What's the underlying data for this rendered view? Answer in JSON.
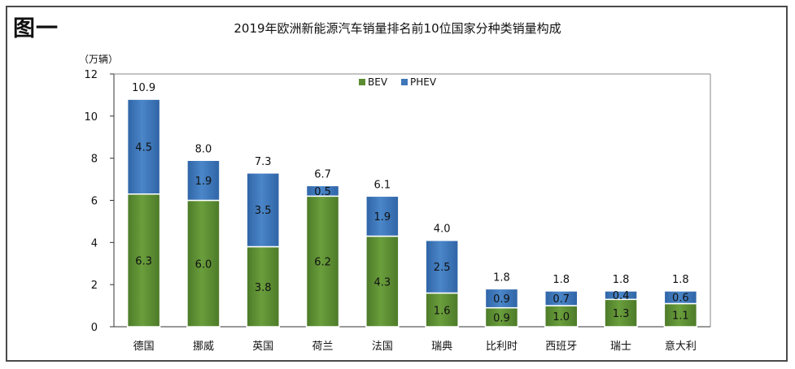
{
  "figure_label": "图一",
  "unit": "（万辆）",
  "chart_data": {
    "type": "bar",
    "stacked": true,
    "title": "2019年欧洲新能源汽车销量排名前10位国家分种类销量构成",
    "ylabel": "（万辆）",
    "ylim": [
      0,
      12
    ],
    "yticks": [
      0,
      2,
      4,
      6,
      8,
      10,
      12
    ],
    "grid": false,
    "legend": "top-center",
    "categories": [
      "德国",
      "挪威",
      "英国",
      "荷兰",
      "法国",
      "瑞典",
      "比利时",
      "西班牙",
      "瑞士",
      "意大利"
    ],
    "series": [
      {
        "name": "BEV",
        "values": [
          6.3,
          6.0,
          3.8,
          6.2,
          4.3,
          1.6,
          0.9,
          1.0,
          1.3,
          1.1
        ],
        "color": "#5b8c32"
      },
      {
        "name": "PHEV",
        "values": [
          4.5,
          1.9,
          3.5,
          0.5,
          1.9,
          2.5,
          0.9,
          0.7,
          0.4,
          0.6
        ],
        "color": "#3f77b9"
      }
    ],
    "totals": [
      10.9,
      8.0,
      7.3,
      6.7,
      6.1,
      4.0,
      1.8,
      1.8,
      1.8,
      1.8
    ]
  }
}
